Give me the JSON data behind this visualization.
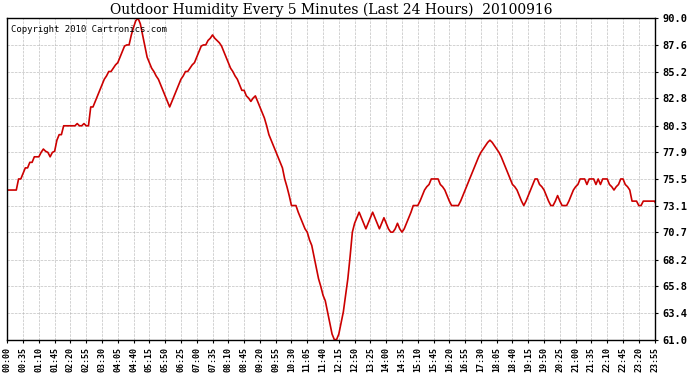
{
  "title": "Outdoor Humidity Every 5 Minutes (Last 24 Hours)  20100916",
  "copyright_text": "Copyright 2010 Cartronics.com",
  "line_color": "#cc0000",
  "background_color": "#ffffff",
  "plot_bg_color": "#ffffff",
  "grid_color": "#b0b0b0",
  "ylim": [
    61.0,
    90.0
  ],
  "yticks": [
    61.0,
    63.4,
    65.8,
    68.2,
    70.7,
    73.1,
    75.5,
    77.9,
    80.3,
    82.8,
    85.2,
    87.6,
    90.0
  ],
  "tick_every_n": 7,
  "humidity_data": [
    74.5,
    74.5,
    74.5,
    74.5,
    74.5,
    75.5,
    75.5,
    76.0,
    76.5,
    76.5,
    77.0,
    77.0,
    77.5,
    77.5,
    77.5,
    77.9,
    78.2,
    78.0,
    77.9,
    77.5,
    77.9,
    78.0,
    79.0,
    79.5,
    79.5,
    80.3,
    80.3,
    80.3,
    80.3,
    80.3,
    80.3,
    80.5,
    80.3,
    80.3,
    80.5,
    80.3,
    80.3,
    82.0,
    82.0,
    82.5,
    83.0,
    83.5,
    84.0,
    84.5,
    84.8,
    85.2,
    85.2,
    85.5,
    85.8,
    86.0,
    86.5,
    87.0,
    87.5,
    87.6,
    87.6,
    88.5,
    89.2,
    89.8,
    90.0,
    89.5,
    88.5,
    87.5,
    86.5,
    86.0,
    85.5,
    85.2,
    84.8,
    84.5,
    84.0,
    83.5,
    83.0,
    82.5,
    82.0,
    82.5,
    83.0,
    83.5,
    84.0,
    84.5,
    84.8,
    85.2,
    85.2,
    85.5,
    85.8,
    86.0,
    86.5,
    87.0,
    87.5,
    87.6,
    87.6,
    88.0,
    88.2,
    88.5,
    88.2,
    88.0,
    87.8,
    87.5,
    87.0,
    86.5,
    86.0,
    85.5,
    85.2,
    84.8,
    84.5,
    84.0,
    83.5,
    83.5,
    83.0,
    82.8,
    82.5,
    82.8,
    83.0,
    82.5,
    82.0,
    81.5,
    81.0,
    80.3,
    79.5,
    79.0,
    78.5,
    78.0,
    77.5,
    77.0,
    76.5,
    75.5,
    74.8,
    74.0,
    73.1,
    73.1,
    73.1,
    72.5,
    72.0,
    71.5,
    71.0,
    70.7,
    70.0,
    69.5,
    68.5,
    67.5,
    66.5,
    65.8,
    65.0,
    64.5,
    63.5,
    62.5,
    61.5,
    61.0,
    61.0,
    61.5,
    62.5,
    63.5,
    65.0,
    66.5,
    68.5,
    70.7,
    71.5,
    72.0,
    72.5,
    72.0,
    71.5,
    71.0,
    71.5,
    72.0,
    72.5,
    72.0,
    71.5,
    71.0,
    71.5,
    72.0,
    71.5,
    71.0,
    70.7,
    70.7,
    71.0,
    71.5,
    71.0,
    70.7,
    71.0,
    71.5,
    72.0,
    72.5,
    73.1,
    73.1,
    73.1,
    73.5,
    74.0,
    74.5,
    74.8,
    75.0,
    75.5,
    75.5,
    75.5,
    75.5,
    75.0,
    74.8,
    74.5,
    74.0,
    73.5,
    73.1,
    73.1,
    73.1,
    73.1,
    73.5,
    74.0,
    74.5,
    75.0,
    75.5,
    76.0,
    76.5,
    77.0,
    77.5,
    77.9,
    78.2,
    78.5,
    78.8,
    79.0,
    78.8,
    78.5,
    78.2,
    77.9,
    77.5,
    77.0,
    76.5,
    76.0,
    75.5,
    75.0,
    74.8,
    74.5,
    74.0,
    73.5,
    73.1,
    73.5,
    74.0,
    74.5,
    75.0,
    75.5,
    75.5,
    75.0,
    74.8,
    74.5,
    74.0,
    73.5,
    73.1,
    73.1,
    73.5,
    74.0,
    73.5,
    73.1,
    73.1,
    73.1,
    73.5,
    74.0,
    74.5,
    74.8,
    75.0,
    75.5,
    75.5,
    75.5,
    75.0,
    75.5,
    75.5,
    75.5,
    75.0,
    75.5,
    75.0,
    75.5,
    75.5,
    75.5,
    75.0,
    74.8,
    74.5,
    74.8,
    75.0,
    75.5,
    75.5,
    75.0,
    74.8,
    74.5,
    73.5,
    73.5,
    73.5,
    73.1,
    73.1,
    73.5,
    73.5,
    73.5,
    73.5,
    73.5,
    73.5,
    73.1,
    73.1
  ]
}
